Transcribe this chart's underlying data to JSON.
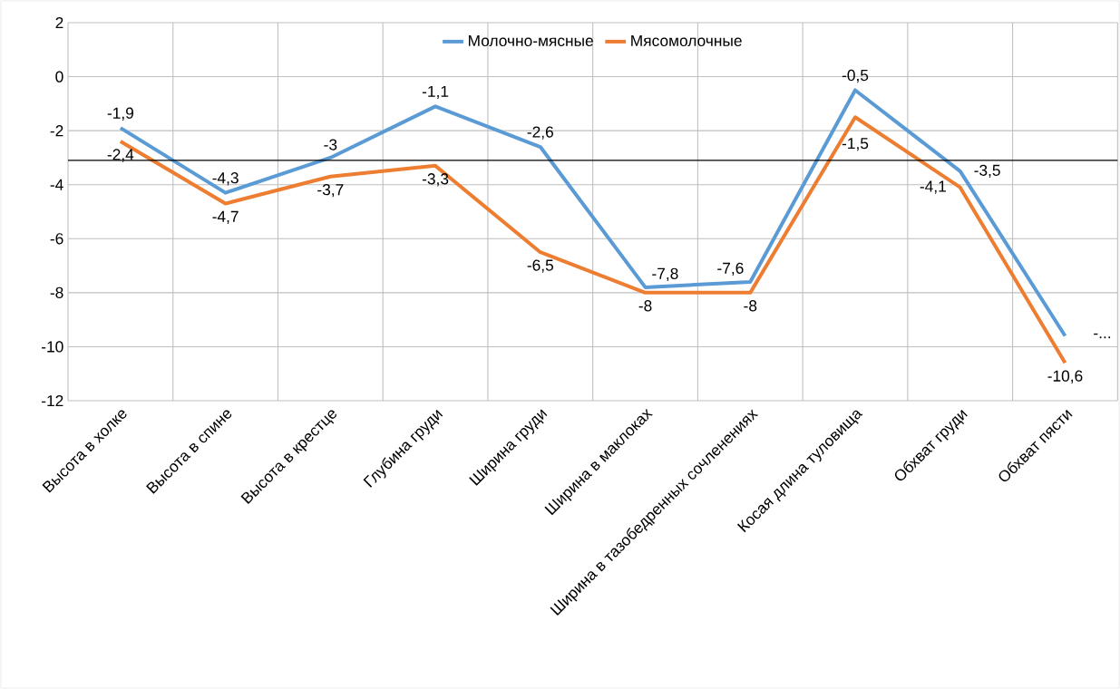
{
  "chart_data": {
    "type": "line",
    "categories": [
      "Высота в холке",
      "Высота в спине",
      "Высота в крестце",
      "Глубина груди",
      "Ширина груди",
      "Ширина в маклоках",
      "Ширина в тазобедренных сочленениях",
      "Косая длина туловища",
      "Обхват груди",
      "Обхват пясти"
    ],
    "series": [
      {
        "name": "Молочно-мясные",
        "color": "#5b9bd5",
        "values": [
          -1.9,
          -4.3,
          -3,
          -1.1,
          -2.6,
          -7.8,
          -7.6,
          -0.5,
          -3.5,
          -9.6
        ],
        "value_labels": [
          "-1,9",
          "-4,3",
          "-3",
          "-1,1",
          "-2,6",
          "-7,8",
          "-7,6",
          "-0,5",
          "-3,5",
          "-..."
        ]
      },
      {
        "name": "Мясомолочные",
        "color": "#ed7d31",
        "values": [
          -2.4,
          -4.7,
          -3.7,
          -3.3,
          -6.5,
          -8,
          -8,
          -1.5,
          -4.1,
          -10.6
        ],
        "value_labels": [
          "-2,4",
          "-4,7",
          "-3,7",
          "-3,3",
          "-6,5",
          "-8",
          "-8",
          "-1,5",
          "-4,1",
          "-10,6"
        ]
      }
    ],
    "ylim": [
      -12,
      2
    ],
    "yticks": [
      -12,
      -10,
      -8,
      -6,
      -4,
      -2,
      0,
      2
    ],
    "ref_lines": [
      {
        "axis": "y",
        "value": -3.1,
        "color": "#000000"
      }
    ],
    "grid": true,
    "legend": "top",
    "marker": "none",
    "line_style": "solid"
  }
}
